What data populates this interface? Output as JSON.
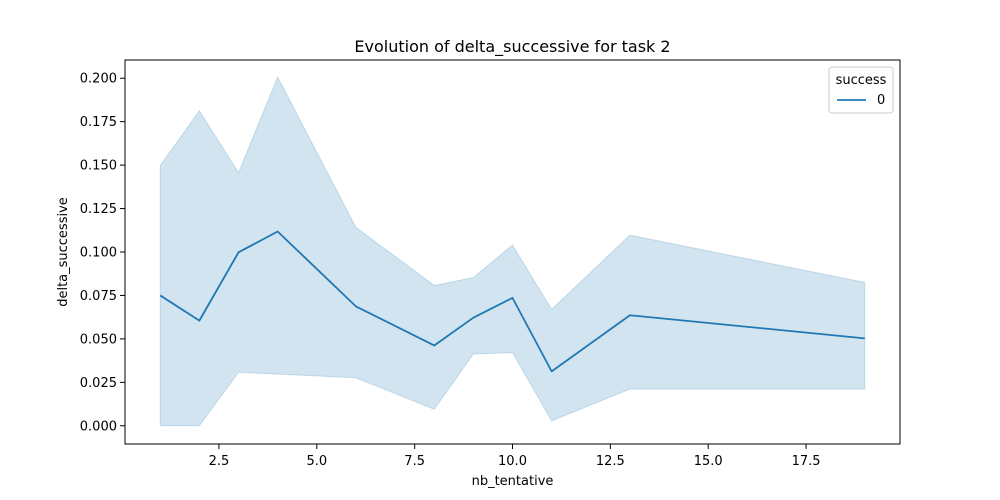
{
  "chart_data": {
    "type": "line",
    "title": "Evolution of delta_successive for task 2",
    "xlabel": "nb_tentative",
    "ylabel": "delta_successive",
    "xlim": [
      0.1,
      19.9
    ],
    "ylim": [
      -0.0105,
      0.2105
    ],
    "x_ticks": [
      2.5,
      5.0,
      7.5,
      10.0,
      12.5,
      15.0,
      17.5
    ],
    "x_tick_labels": [
      "2.5",
      "5.0",
      "7.5",
      "10.0",
      "12.5",
      "15.0",
      "17.5"
    ],
    "y_ticks": [
      0.0,
      0.025,
      0.05,
      0.075,
      0.1,
      0.125,
      0.15,
      0.175,
      0.2
    ],
    "y_tick_labels": [
      "0.000",
      "0.025",
      "0.050",
      "0.075",
      "0.100",
      "0.125",
      "0.150",
      "0.175",
      "0.200"
    ],
    "grid": false,
    "legend": {
      "placement": "top-right",
      "title": "success",
      "entries": [
        "0"
      ]
    },
    "colors": {
      "line": "#1f77b4",
      "band": "#1f77b4"
    },
    "series": [
      {
        "name": "0",
        "x": [
          1,
          2,
          3,
          4,
          6,
          8,
          9,
          10,
          11,
          13,
          19
        ],
        "y": [
          0.075,
          0.0605,
          0.0998,
          0.1118,
          0.0687,
          0.0462,
          0.0622,
          0.0736,
          0.0313,
          0.0636,
          0.0503
        ],
        "ci_low": [
          0.0,
          0.0,
          0.0308,
          0.0297,
          0.0276,
          0.0095,
          0.0413,
          0.0421,
          0.0028,
          0.0211,
          0.0211
        ],
        "ci_high": [
          0.1497,
          0.1813,
          0.1456,
          0.2007,
          0.1142,
          0.0807,
          0.0853,
          0.104,
          0.067,
          0.1097,
          0.0825
        ]
      }
    ]
  }
}
